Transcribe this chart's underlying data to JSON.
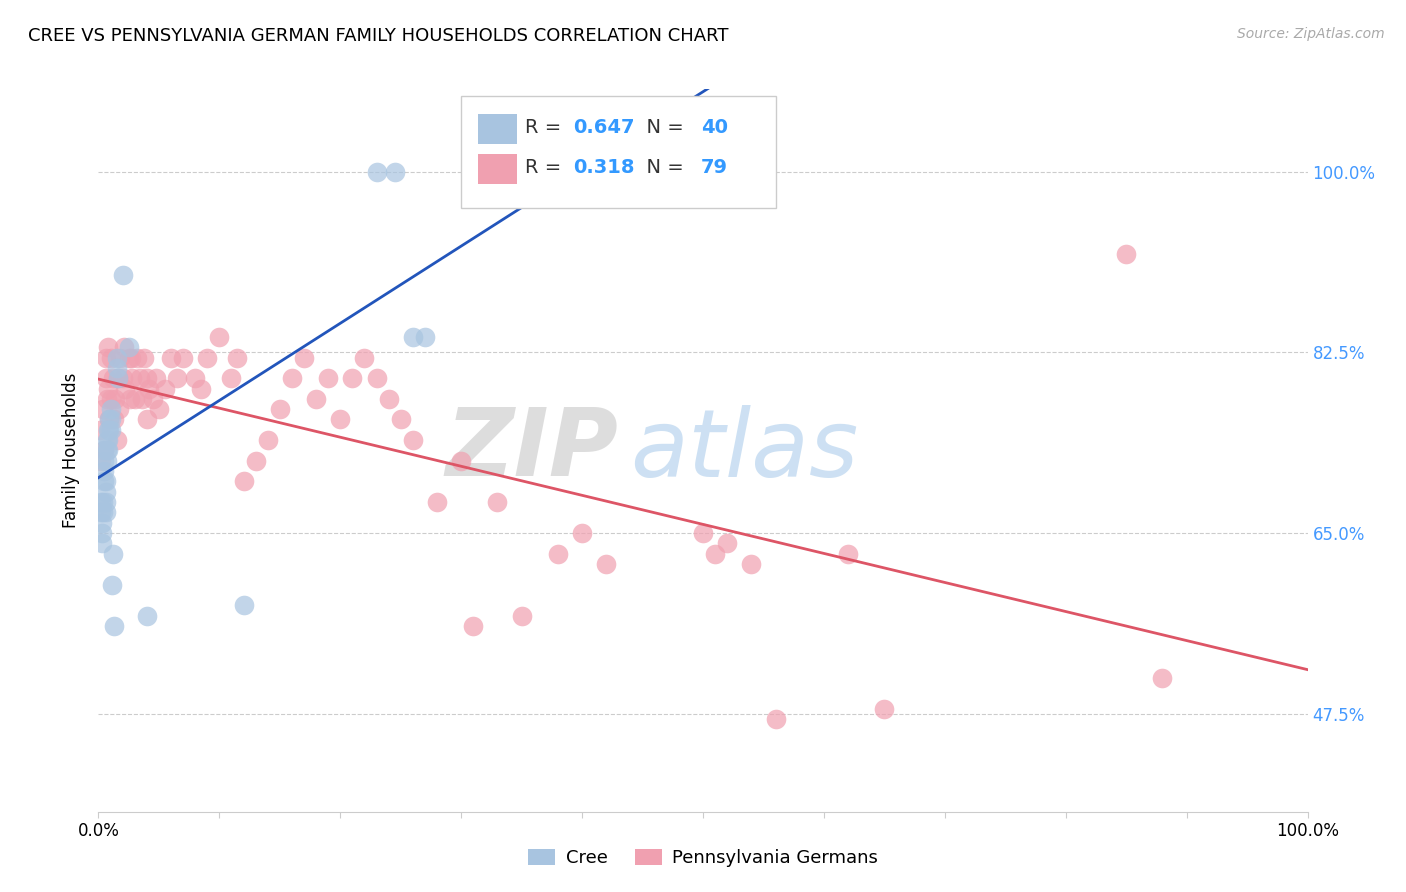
{
  "title": "CREE VS PENNSYLVANIA GERMAN FAMILY HOUSEHOLDS CORRELATION CHART",
  "source": "Source: ZipAtlas.com",
  "ylabel": "Family Households",
  "ytick_labels": [
    "100.0%",
    "82.5%",
    "65.0%",
    "47.5%"
  ],
  "ytick_values": [
    1.0,
    0.825,
    0.65,
    0.475
  ],
  "xlim": [
    0.0,
    1.0
  ],
  "ylim": [
    0.38,
    1.08
  ],
  "legend_label1": "Cree",
  "legend_label2": "Pennsylvania Germans",
  "R1": "0.647",
  "N1": "40",
  "R2": "0.318",
  "N2": "79",
  "color_cree": "#a8c4e0",
  "color_pg": "#f0a0b0",
  "trendline_cree": "#2255bb",
  "trendline_pg": "#dd5566",
  "watermark_zip": "ZIP",
  "watermark_atlas": "atlas",
  "cree_x": [
    0.002,
    0.002,
    0.003,
    0.003,
    0.003,
    0.004,
    0.004,
    0.005,
    0.005,
    0.005,
    0.005,
    0.006,
    0.006,
    0.006,
    0.006,
    0.007,
    0.007,
    0.007,
    0.008,
    0.008,
    0.008,
    0.009,
    0.009,
    0.01,
    0.01,
    0.01,
    0.011,
    0.012,
    0.013,
    0.015,
    0.015,
    0.016,
    0.02,
    0.025,
    0.04,
    0.12,
    0.23,
    0.245,
    0.26,
    0.27
  ],
  "cree_y": [
    0.68,
    0.67,
    0.66,
    0.65,
    0.64,
    0.68,
    0.67,
    0.73,
    0.72,
    0.71,
    0.7,
    0.7,
    0.69,
    0.68,
    0.67,
    0.74,
    0.73,
    0.72,
    0.75,
    0.74,
    0.73,
    0.76,
    0.75,
    0.77,
    0.76,
    0.75,
    0.6,
    0.63,
    0.56,
    0.82,
    0.81,
    0.8,
    0.9,
    0.83,
    0.57,
    0.58,
    1.0,
    1.0,
    0.84,
    0.84
  ],
  "pg_x": [
    0.001,
    0.002,
    0.004,
    0.005,
    0.006,
    0.006,
    0.007,
    0.008,
    0.008,
    0.009,
    0.01,
    0.01,
    0.012,
    0.013,
    0.014,
    0.015,
    0.016,
    0.017,
    0.018,
    0.02,
    0.021,
    0.022,
    0.025,
    0.026,
    0.027,
    0.028,
    0.03,
    0.032,
    0.034,
    0.036,
    0.038,
    0.04,
    0.04,
    0.042,
    0.045,
    0.048,
    0.05,
    0.055,
    0.06,
    0.065,
    0.07,
    0.08,
    0.085,
    0.09,
    0.1,
    0.11,
    0.115,
    0.12,
    0.13,
    0.14,
    0.15,
    0.16,
    0.17,
    0.18,
    0.19,
    0.2,
    0.21,
    0.22,
    0.23,
    0.24,
    0.25,
    0.26,
    0.28,
    0.3,
    0.31,
    0.33,
    0.35,
    0.38,
    0.4,
    0.42,
    0.5,
    0.51,
    0.52,
    0.54,
    0.56,
    0.62,
    0.65,
    0.85,
    0.88
  ],
  "pg_y": [
    0.75,
    0.72,
    0.77,
    0.73,
    0.82,
    0.8,
    0.78,
    0.83,
    0.79,
    0.76,
    0.82,
    0.78,
    0.8,
    0.76,
    0.78,
    0.74,
    0.8,
    0.77,
    0.82,
    0.8,
    0.83,
    0.79,
    0.82,
    0.78,
    0.82,
    0.8,
    0.78,
    0.82,
    0.8,
    0.78,
    0.82,
    0.8,
    0.76,
    0.79,
    0.78,
    0.8,
    0.77,
    0.79,
    0.82,
    0.8,
    0.82,
    0.8,
    0.79,
    0.82,
    0.84,
    0.8,
    0.82,
    0.7,
    0.72,
    0.74,
    0.77,
    0.8,
    0.82,
    0.78,
    0.8,
    0.76,
    0.8,
    0.82,
    0.8,
    0.78,
    0.76,
    0.74,
    0.68,
    0.72,
    0.56,
    0.68,
    0.57,
    0.63,
    0.65,
    0.62,
    0.65,
    0.63,
    0.64,
    0.62,
    0.47,
    0.63,
    0.48,
    0.92,
    0.51
  ]
}
